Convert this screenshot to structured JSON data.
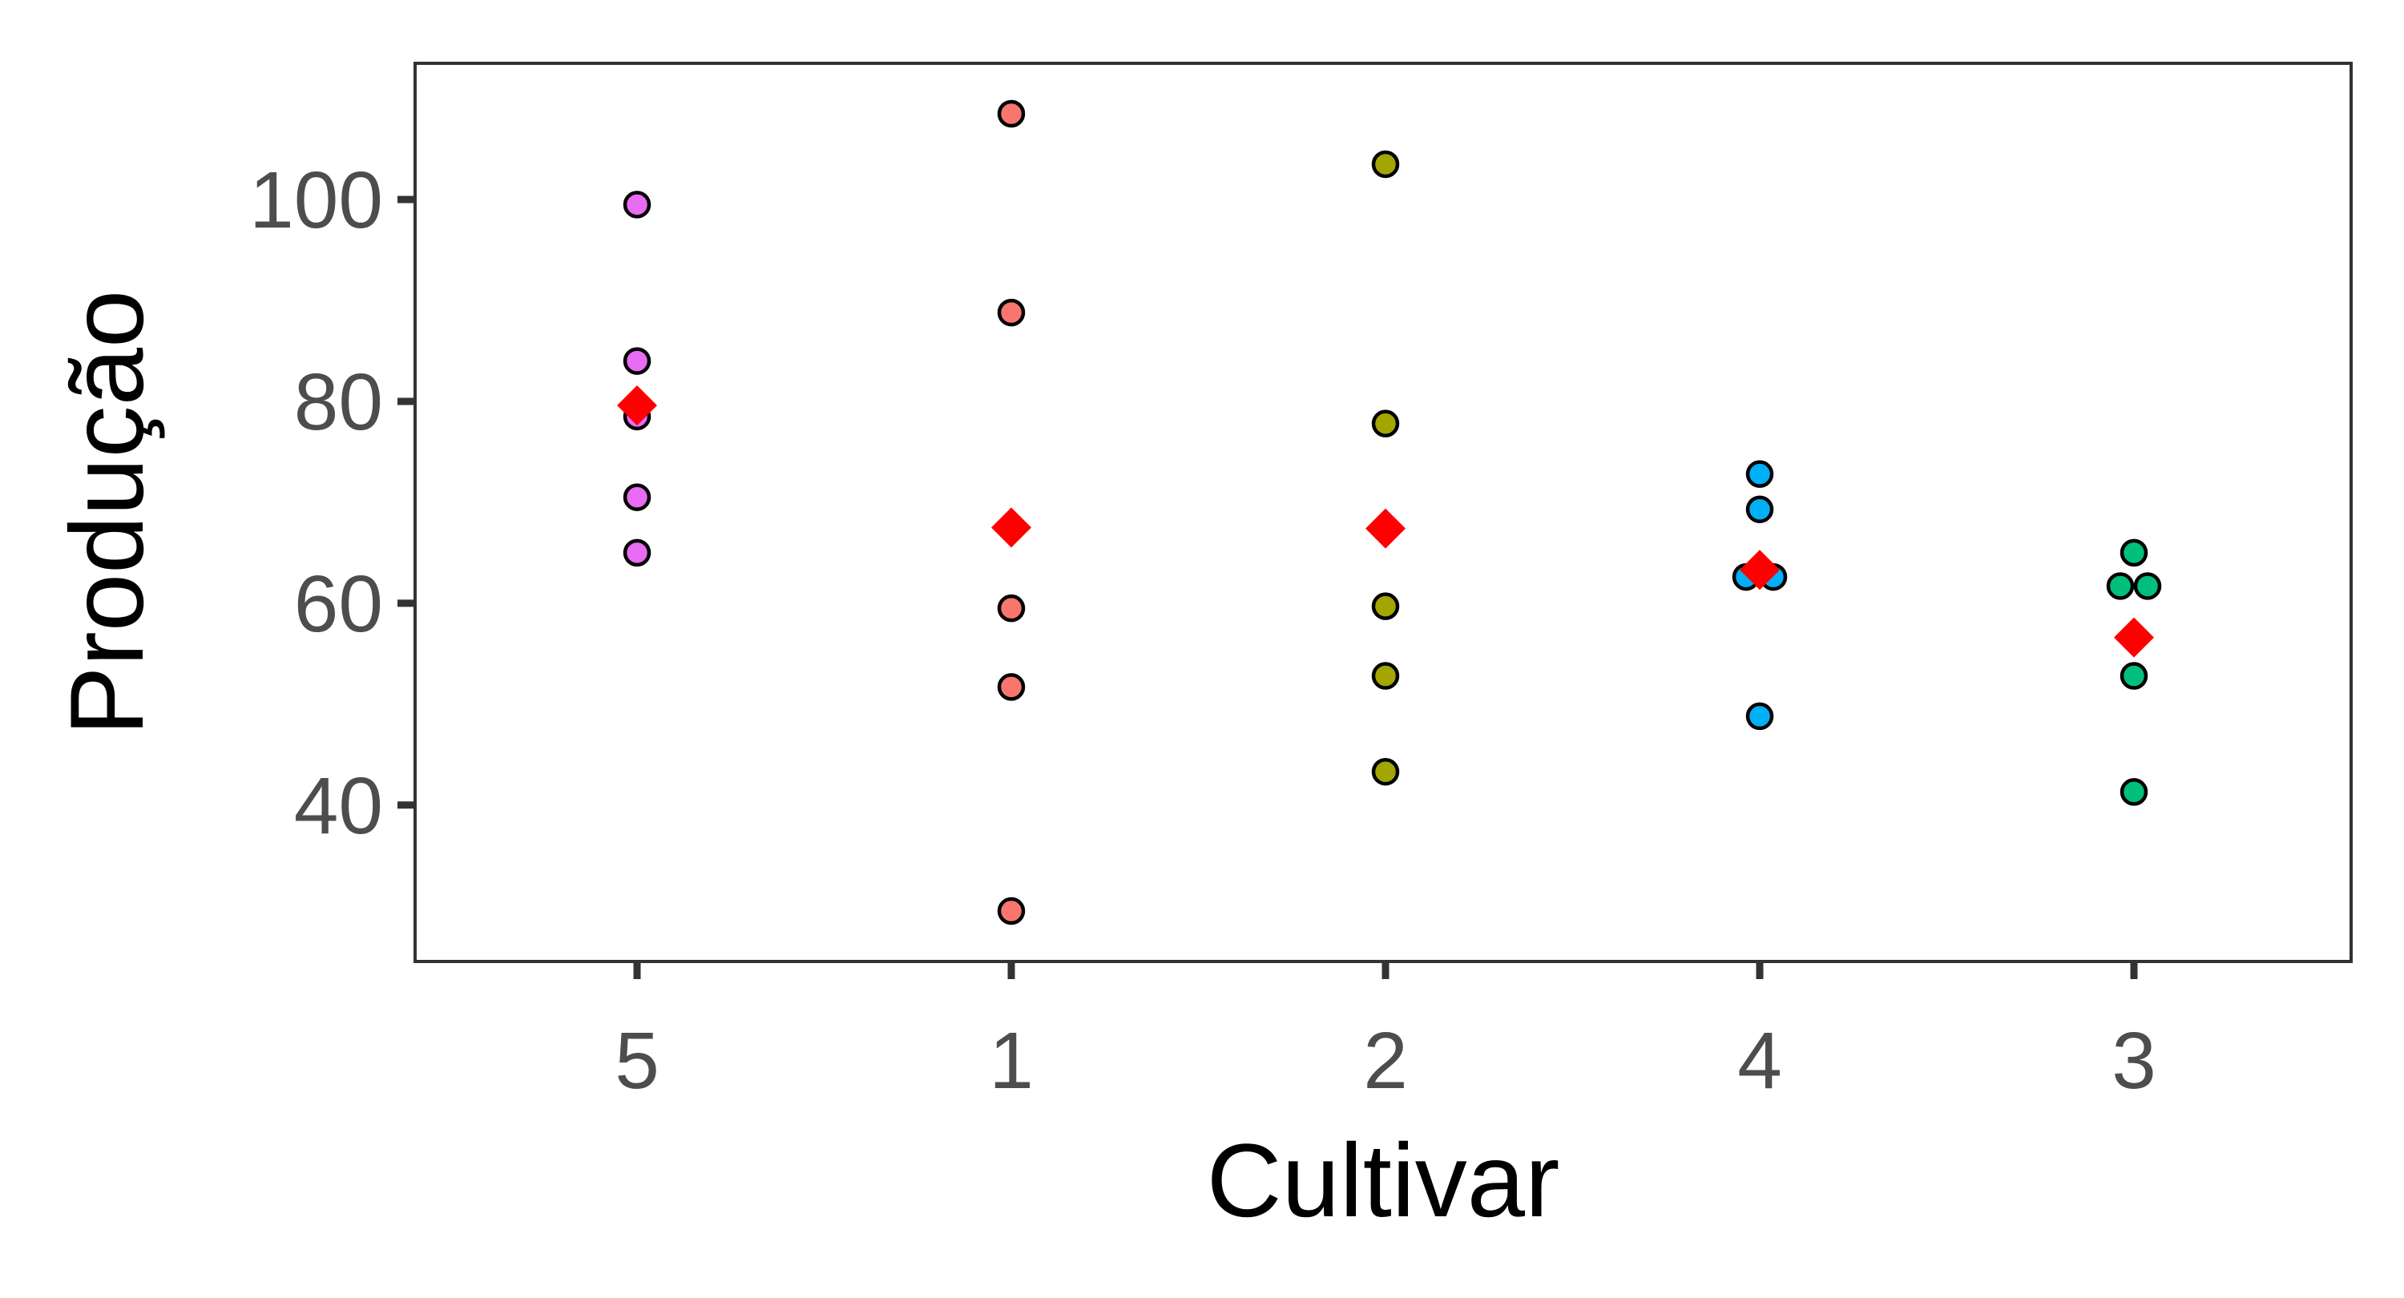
{
  "chart_data": {
    "type": "scatter",
    "xlabel": "Cultivar",
    "ylabel": "Produção",
    "categories": [
      "5",
      "1",
      "2",
      "4",
      "3"
    ],
    "ylim": [
      24.5,
      113.5
    ],
    "yticks": [
      40,
      60,
      80,
      100
    ],
    "grid": false,
    "legend": "none",
    "series": [
      {
        "category": "5",
        "color": "#E76BF3",
        "values": [
          99.5,
          84,
          78.5,
          70.5,
          65
        ]
      },
      {
        "category": "1",
        "color": "#F8766D",
        "values": [
          108.5,
          88.8,
          59.5,
          51.7,
          29.5
        ]
      },
      {
        "category": "2",
        "color": "#A3A500",
        "values": [
          103.5,
          77.8,
          59.7,
          52.8,
          43.3
        ]
      },
      {
        "category": "4",
        "color": "#00B0F6",
        "values": [
          72.8,
          69.3,
          62.6,
          62.6,
          48.8
        ]
      },
      {
        "category": "3",
        "color": "#00BF7D",
        "values": [
          65,
          61.7,
          61.7,
          52.8,
          41.3
        ]
      }
    ],
    "means": {
      "color": "#FF0000",
      "shape": "diamond",
      "values": [
        79.6,
        67.5,
        67.4,
        63.3,
        56.6
      ]
    }
  }
}
